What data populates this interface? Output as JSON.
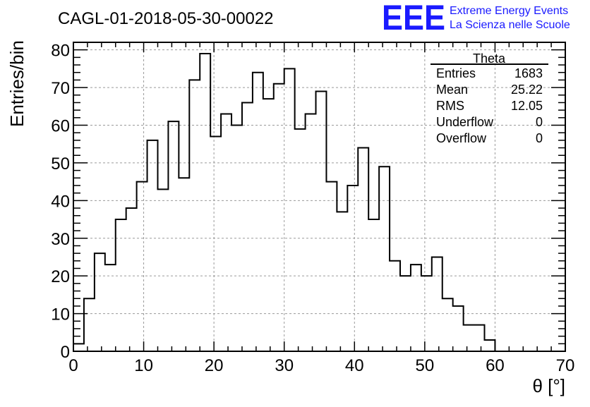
{
  "colors": {
    "frame": "#000000",
    "grid": "#9a9a9a",
    "histogram": "#000000",
    "logo": "#1a1aff"
  },
  "logo": {
    "mark": "EEE",
    "line1": "Extreme Energy Events",
    "line2": "La Scienza nelle Scuole"
  },
  "stats_box": {
    "title": "Theta",
    "rows": [
      {
        "label": "Entries",
        "value": "1683"
      },
      {
        "label": "Mean",
        "value": "25.22"
      },
      {
        "label": "RMS",
        "value": "12.05"
      },
      {
        "label": "Underflow",
        "value": "0"
      },
      {
        "label": "Overflow",
        "value": "0"
      }
    ]
  },
  "chart_data": {
    "type": "bar",
    "title": "CAGL-01-2018-05-30-00022",
    "xlabel": "θ [°]",
    "ylabel": "Entries/bin",
    "xlim": [
      0,
      70
    ],
    "ylim": [
      0,
      82
    ],
    "x_ticks": [
      0,
      10,
      20,
      30,
      40,
      50,
      60,
      70
    ],
    "y_ticks": [
      0,
      10,
      20,
      30,
      40,
      50,
      60,
      70,
      80
    ],
    "grid": true,
    "bin_width": 1.5,
    "bin_edges_start": 0,
    "values": [
      2,
      14,
      26,
      23,
      35,
      38,
      45,
      56,
      43,
      61,
      46,
      72,
      79,
      57,
      63,
      60,
      66,
      74,
      67,
      71,
      75,
      59,
      63,
      69,
      45,
      37,
      44,
      54,
      35,
      49,
      24,
      20,
      23,
      20,
      25,
      14,
      12,
      7,
      7,
      3,
      0,
      0,
      0,
      0,
      0,
      0,
      0
    ]
  }
}
